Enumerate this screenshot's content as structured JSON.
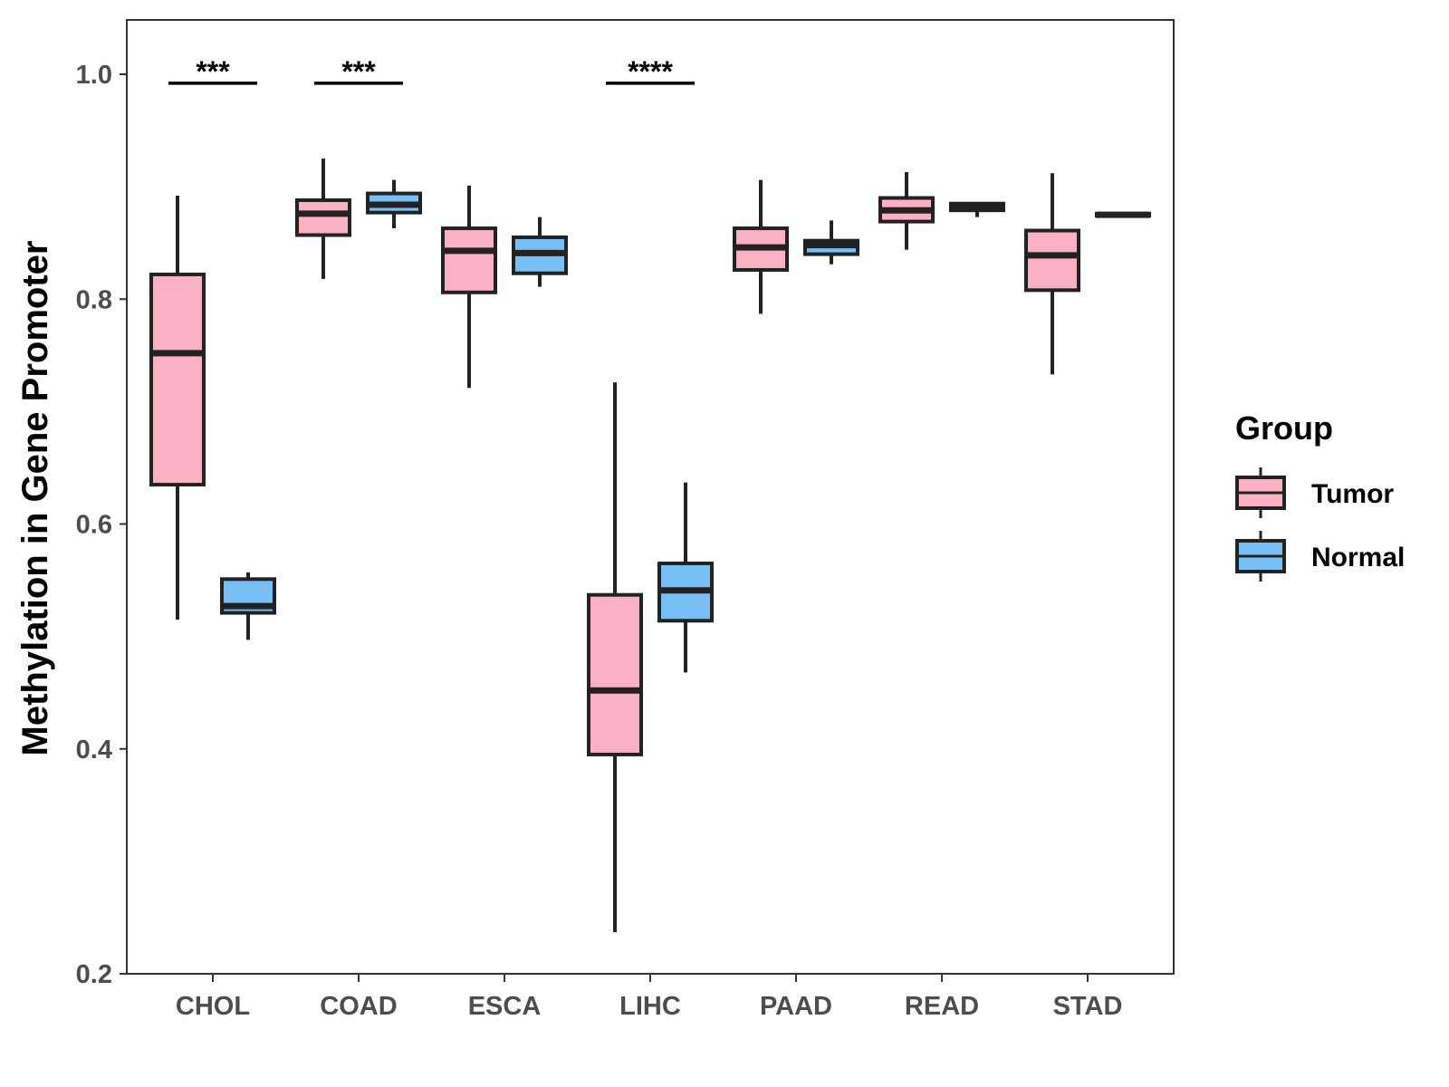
{
  "chart_data": {
    "type": "boxplot",
    "title": "",
    "xlabel": "",
    "ylabel": "Methylation in Gene Promoter",
    "ylim": [
      0.2,
      1.05
    ],
    "yticks": [
      {
        "value": 0.2,
        "label": "0.2"
      },
      {
        "value": 0.4,
        "label": "0.4"
      },
      {
        "value": 0.6,
        "label": "0.6"
      },
      {
        "value": 0.8,
        "label": "0.8"
      },
      {
        "value": 1.0,
        "label": "1.0"
      }
    ],
    "categories": [
      "CHOL",
      "COAD",
      "ESCA",
      "LIHC",
      "PAAD",
      "READ",
      "STAD"
    ],
    "grid": false,
    "legend": {
      "title": "Group",
      "position": "right",
      "items": [
        {
          "name": "Tumor",
          "color": "#FBB0C3"
        },
        {
          "name": "Normal",
          "color": "#78BFF6"
        }
      ]
    },
    "series": [
      {
        "name": "Tumor",
        "color": "#FBB0C3",
        "boxes": [
          {
            "category": "CHOL",
            "min": 0.515,
            "q1": 0.635,
            "median": 0.752,
            "q3": 0.822,
            "max": 0.892
          },
          {
            "category": "COAD",
            "min": 0.818,
            "q1": 0.857,
            "median": 0.876,
            "q3": 0.888,
            "max": 0.925
          },
          {
            "category": "ESCA",
            "min": 0.721,
            "q1": 0.806,
            "median": 0.843,
            "q3": 0.863,
            "max": 0.901
          },
          {
            "category": "LIHC",
            "min": 0.237,
            "q1": 0.395,
            "median": 0.452,
            "q3": 0.537,
            "max": 0.726
          },
          {
            "category": "PAAD",
            "min": 0.787,
            "q1": 0.826,
            "median": 0.846,
            "q3": 0.863,
            "max": 0.906
          },
          {
            "category": "READ",
            "min": 0.844,
            "q1": 0.869,
            "median": 0.879,
            "q3": 0.89,
            "max": 0.913
          },
          {
            "category": "STAD",
            "min": 0.733,
            "q1": 0.808,
            "median": 0.839,
            "q3": 0.861,
            "max": 0.912
          }
        ]
      },
      {
        "name": "Normal",
        "color": "#78BFF6",
        "boxes": [
          {
            "category": "CHOL",
            "min": 0.497,
            "q1": 0.521,
            "median": 0.527,
            "q3": 0.551,
            "max": 0.557
          },
          {
            "category": "COAD",
            "min": 0.863,
            "q1": 0.877,
            "median": 0.884,
            "q3": 0.894,
            "max": 0.906
          },
          {
            "category": "ESCA",
            "min": 0.811,
            "q1": 0.823,
            "median": 0.841,
            "q3": 0.855,
            "max": 0.873
          },
          {
            "category": "LIHC",
            "min": 0.468,
            "q1": 0.514,
            "median": 0.541,
            "q3": 0.565,
            "max": 0.637
          },
          {
            "category": "PAAD",
            "min": 0.831,
            "q1": 0.84,
            "median": 0.848,
            "q3": 0.852,
            "max": 0.87
          },
          {
            "category": "READ",
            "min": 0.873,
            "q1": 0.879,
            "median": 0.881,
            "q3": 0.885,
            "max": 0.886
          },
          {
            "category": "STAD",
            "min": 0.873,
            "q1": 0.874,
            "median": 0.875,
            "q3": 0.876,
            "max": 0.877
          }
        ]
      }
    ],
    "annotations": [
      {
        "category": "CHOL",
        "label": "***",
        "value": 0.992
      },
      {
        "category": "COAD",
        "label": "***",
        "value": 0.992
      },
      {
        "category": "LIHC",
        "label": "****",
        "value": 0.992
      }
    ]
  }
}
